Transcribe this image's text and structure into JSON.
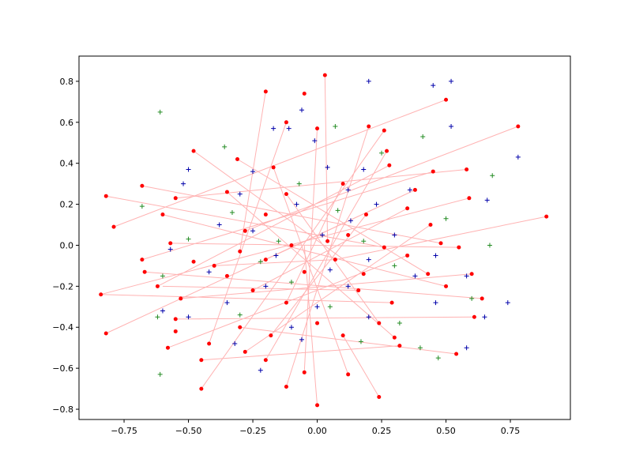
{
  "chart_data": {
    "type": "scatter",
    "xlim": [
      -0.925,
      0.983
    ],
    "ylim": [
      -0.85,
      0.923
    ],
    "xticks": [
      {
        "value": -0.75,
        "label": "−0.75"
      },
      {
        "value": -0.5,
        "label": "−0.50"
      },
      {
        "value": -0.25,
        "label": "−0.25"
      },
      {
        "value": 0,
        "label": "0.00"
      },
      {
        "value": 0.25,
        "label": "0.25"
      },
      {
        "value": 0.5,
        "label": "0.50"
      },
      {
        "value": 0.75,
        "label": "0.75"
      }
    ],
    "yticks": [
      {
        "value": -0.8,
        "label": "−0.8"
      },
      {
        "value": -0.6,
        "label": "−0.6"
      },
      {
        "value": -0.4,
        "label": "−0.4"
      },
      {
        "value": -0.2,
        "label": "−0.2"
      },
      {
        "value": 0,
        "label": "0.0"
      },
      0.2,
      0.4,
      0.6,
      0.8
    ],
    "series": [
      {
        "marker": "line",
        "color": "#ff0000",
        "x": [
          0.5,
          -0.79,
          null,
          0.03,
          0.04,
          null,
          -0.2,
          -0.3,
          null,
          0.78,
          -0.28,
          null,
          0.59,
          -0.84,
          null,
          0.89,
          0.07,
          null,
          -0.82,
          0.26,
          null,
          0.58,
          -0.55,
          null,
          0.45,
          -0.68,
          null,
          -0.48,
          0.18,
          null,
          -0.31,
          0.43,
          null,
          0.28,
          -0.62,
          null,
          -0.68,
          0.48,
          null,
          0.38,
          -0.82,
          null,
          -0.6,
          0.5,
          null,
          0.55,
          -0.57,
          null,
          -0.67,
          0.64,
          null,
          0.6,
          -0.53,
          null,
          -0.84,
          0.29,
          null,
          0.61,
          -0.55,
          null,
          -0.58,
          0.35,
          null,
          0.32,
          -0.45,
          null,
          0.54,
          -0.3,
          null,
          -0.45,
          0.26,
          null,
          0.0,
          -0.05,
          null,
          0.24,
          0.1,
          null,
          -0.12,
          0.2,
          null,
          0.12,
          -0.17,
          null,
          -0.05,
          0.0,
          null,
          -0.2,
          0.27,
          null,
          -0.28,
          0.44,
          null,
          -0.42,
          -0.12,
          null,
          -0.18,
          0.19,
          null,
          0.3,
          -0.35,
          null,
          0.24,
          -0.12,
          null,
          -0.12,
          0.1,
          null,
          0.16,
          -0.6,
          null,
          -0.25,
          0.35,
          null,
          0.07,
          -0.4,
          null,
          -0.2,
          0.38
        ],
        "y": [
          0.71,
          0.09,
          null,
          0.83,
          0.02,
          null,
          0.75,
          -0.03,
          null,
          0.58,
          0.07,
          null,
          0.23,
          -0.24,
          null,
          0.14,
          -0.07,
          null,
          0.24,
          -0.01,
          null,
          0.37,
          0.23,
          null,
          0.36,
          -0.07,
          null,
          0.46,
          -0.14,
          null,
          0.42,
          -0.14,
          null,
          0.39,
          -0.2,
          null,
          0.29,
          0.01,
          null,
          0.27,
          -0.43,
          null,
          0.15,
          -0.2,
          null,
          -0.01,
          0.01,
          null,
          -0.13,
          -0.26,
          null,
          -0.14,
          -0.26,
          null,
          -0.24,
          -0.28,
          null,
          -0.35,
          -0.36,
          null,
          -0.5,
          -0.05,
          null,
          -0.49,
          -0.56,
          null,
          -0.53,
          -0.4,
          null,
          -0.7,
          0.56,
          null,
          -0.78,
          0.0,
          null,
          -0.74,
          -0.44,
          null,
          -0.69,
          0.58,
          null,
          -0.63,
          0.38,
          null,
          -0.62,
          0.57,
          null,
          -0.56,
          0.46,
          null,
          -0.52,
          0.1,
          null,
          -0.48,
          0.6,
          null,
          -0.44,
          0.15,
          null,
          -0.45,
          0.26,
          null,
          -0.38,
          0.25,
          null,
          -0.28,
          0.3,
          null,
          -0.22,
          -0.2,
          null,
          -0.22,
          0.18,
          null,
          -0.07,
          -0.1,
          null,
          -0.07,
          0.27
        ]
      },
      {
        "marker": "o",
        "color": "#ff0000",
        "x": [
          0.03,
          -0.2,
          -0.05,
          0.5,
          -0.12,
          0.0,
          0.2,
          0.26,
          0.78,
          -0.48,
          -0.31,
          -0.17,
          0.27,
          0.28,
          0.45,
          0.58,
          -0.68,
          -0.35,
          -0.12,
          0.1,
          0.38,
          -0.82,
          -0.55,
          0.59,
          -0.6,
          0.19,
          0.89,
          -0.79,
          -0.28,
          0.04,
          0.44,
          -0.57,
          -0.3,
          -0.1,
          0.26,
          0.48,
          0.55,
          -0.68,
          -0.48,
          -0.2,
          0.07,
          0.35,
          -0.67,
          -0.35,
          -0.05,
          0.18,
          0.43,
          0.6,
          -0.62,
          -0.25,
          0.16,
          0.5,
          -0.84,
          -0.53,
          -0.12,
          0.29,
          0.64,
          -0.55,
          -0.3,
          0.0,
          0.24,
          0.61,
          -0.82,
          -0.55,
          -0.18,
          0.1,
          0.3,
          -0.58,
          -0.42,
          -0.28,
          0.32,
          0.54,
          -0.45,
          -0.2,
          -0.05,
          0.12,
          -0.45,
          -0.12,
          0.24,
          0.0,
          -0.4,
          0.12,
          -0.2,
          0.35
        ],
        "y": [
          0.83,
          0.75,
          0.74,
          0.71,
          0.6,
          0.57,
          0.58,
          0.56,
          0.58,
          0.46,
          0.42,
          0.38,
          0.46,
          0.39,
          0.36,
          0.37,
          0.29,
          0.26,
          0.25,
          0.3,
          0.27,
          0.24,
          0.23,
          0.23,
          0.15,
          0.15,
          0.14,
          0.09,
          0.07,
          0.02,
          0.1,
          0.01,
          -0.03,
          0.0,
          -0.01,
          0.01,
          -0.01,
          -0.07,
          -0.08,
          -0.07,
          -0.07,
          -0.05,
          -0.13,
          -0.15,
          -0.13,
          -0.14,
          -0.14,
          -0.14,
          -0.2,
          -0.22,
          -0.22,
          -0.2,
          -0.24,
          -0.26,
          -0.28,
          -0.28,
          -0.26,
          -0.36,
          -0.4,
          -0.38,
          -0.38,
          -0.35,
          -0.43,
          -0.42,
          -0.44,
          -0.44,
          -0.45,
          -0.5,
          -0.48,
          -0.52,
          -0.49,
          -0.53,
          -0.56,
          -0.56,
          -0.62,
          -0.63,
          -0.7,
          -0.69,
          -0.74,
          -0.78,
          -0.1,
          0.05,
          0.15,
          0.18
        ]
      },
      {
        "marker": "+",
        "color": "#0000aa",
        "x": [
          0.2,
          0.45,
          0.52,
          -0.06,
          -0.17,
          -0.11,
          0.52,
          -0.01,
          0.78,
          -0.5,
          -0.25,
          0.04,
          0.18,
          -0.52,
          -0.3,
          0.12,
          0.36,
          0.66,
          -0.08,
          0.23,
          -0.38,
          0.13,
          -0.25,
          0.02,
          0.3,
          -0.57,
          -0.16,
          0.2,
          0.46,
          -0.42,
          0.05,
          0.38,
          -0.2,
          0.12,
          0.58,
          -0.6,
          -0.35,
          0.0,
          0.74,
          0.46,
          -0.5,
          -0.1,
          0.2,
          0.65,
          -0.32,
          0.58,
          -0.22,
          -0.06
        ],
        "y": [
          0.8,
          0.78,
          0.8,
          0.66,
          0.57,
          0.57,
          0.58,
          0.51,
          0.43,
          0.37,
          0.36,
          0.38,
          0.37,
          0.3,
          0.25,
          0.27,
          0.27,
          0.22,
          0.2,
          0.2,
          0.1,
          0.12,
          0.07,
          0.05,
          0.05,
          -0.02,
          -0.05,
          -0.07,
          -0.05,
          -0.13,
          -0.12,
          -0.15,
          -0.2,
          -0.2,
          -0.15,
          -0.32,
          -0.28,
          -0.3,
          -0.28,
          -0.28,
          -0.35,
          -0.4,
          -0.35,
          -0.35,
          -0.48,
          -0.5,
          -0.61,
          -0.46
        ]
      },
      {
        "marker": "+",
        "color": "#228b22",
        "x": [
          -0.61,
          0.07,
          0.41,
          -0.36,
          0.25,
          -0.07,
          0.68,
          -0.68,
          -0.33,
          0.08,
          0.5,
          -0.5,
          -0.15,
          0.18,
          0.67,
          -0.22,
          0.3,
          -0.6,
          -0.1,
          0.6,
          -0.62,
          -0.3,
          0.05,
          0.32,
          0.17,
          0.4,
          -0.61,
          0.47
        ],
        "y": [
          0.65,
          0.58,
          0.53,
          0.48,
          0.45,
          0.3,
          0.34,
          0.19,
          0.16,
          0.17,
          0.13,
          0.03,
          0.02,
          0.02,
          0.0,
          -0.08,
          -0.1,
          -0.15,
          -0.18,
          -0.26,
          -0.35,
          -0.34,
          -0.3,
          -0.38,
          -0.47,
          -0.5,
          -0.63,
          -0.55
        ]
      }
    ]
  }
}
